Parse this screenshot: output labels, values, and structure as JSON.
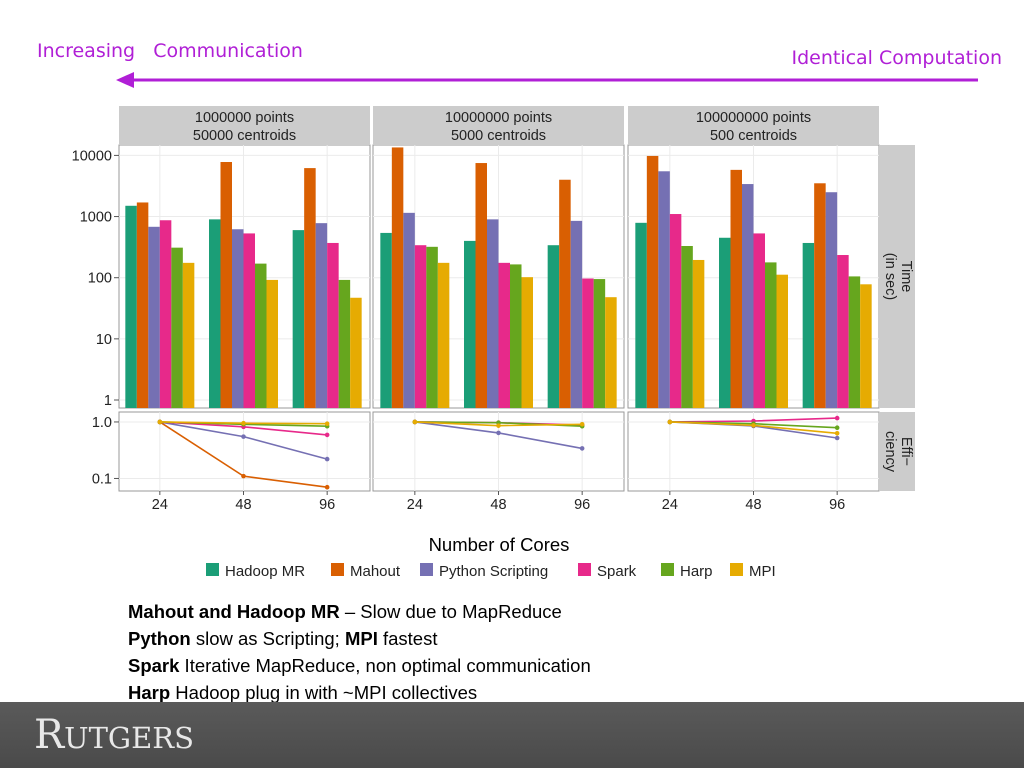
{
  "header": {
    "left_label": "Increasing   Communication",
    "right_label": "Identical Computation",
    "arrow_color": "#b01fd6"
  },
  "chart_data": {
    "type": "bar",
    "facets": [
      {
        "line1": "1000000 points",
        "line2": "50000 centroids"
      },
      {
        "line1": "10000000 points",
        "line2": "5000 centroids"
      },
      {
        "line1": "100000000 points",
        "line2": "500 centroids"
      }
    ],
    "categories": [
      "24",
      "48",
      "96"
    ],
    "xlabel": "Number of Cores",
    "strip_time": {
      "line1": "Time",
      "line2": "(in sec)"
    },
    "strip_eff": {
      "line1": "Effi−",
      "line2": "ciency"
    },
    "time_scale": "log10",
    "time_ylim": [
      1,
      20000
    ],
    "time_ticks": [
      "1",
      "10",
      "100",
      "1000",
      "10000"
    ],
    "eff_scale": "log10",
    "eff_ylim": [
      0.06,
      1.5
    ],
    "eff_ticks": [
      "0.1",
      "1.0"
    ],
    "series": [
      {
        "name": "Hadoop MR",
        "color": "#1b9e77",
        "time": [
          [
            1500,
            900,
            600
          ],
          [
            540,
            400,
            340
          ],
          [
            790,
            450,
            370
          ]
        ],
        "efficiency": [
          null,
          null,
          null
        ]
      },
      {
        "name": "Mahout",
        "color": "#d95f02",
        "time": [
          [
            1700,
            7800,
            6200
          ],
          [
            13500,
            7500,
            4000
          ],
          [
            9800,
            5800,
            3500
          ]
        ],
        "efficiency": [
          [
            1.0,
            0.11,
            0.07
          ],
          null,
          null
        ]
      },
      {
        "name": "Python Scripting",
        "color": "#7570b3",
        "time": [
          [
            680,
            620,
            780
          ],
          [
            1150,
            900,
            850
          ],
          [
            5500,
            3400,
            2500
          ]
        ],
        "efficiency": [
          [
            1.0,
            0.55,
            0.22
          ],
          [
            1.0,
            0.64,
            0.34
          ],
          [
            1.0,
            0.85,
            0.52
          ]
        ]
      },
      {
        "name": "Spark",
        "color": "#e7298a",
        "time": [
          [
            870,
            530,
            370
          ],
          [
            340,
            175,
            97
          ],
          [
            1100,
            530,
            235
          ]
        ],
        "efficiency": [
          [
            1.0,
            0.82,
            0.59
          ],
          [
            1.0,
            0.97,
            0.88
          ],
          [
            1.0,
            1.04,
            1.17
          ]
        ]
      },
      {
        "name": "Harp",
        "color": "#66a61e",
        "time": [
          [
            310,
            170,
            92
          ],
          [
            320,
            165,
            95
          ],
          [
            330,
            178,
            105
          ]
        ],
        "efficiency": [
          [
            1.0,
            0.91,
            0.84
          ],
          [
            1.0,
            0.97,
            0.84
          ],
          [
            1.0,
            0.93,
            0.79
          ]
        ]
      },
      {
        "name": "MPI",
        "color": "#e6ab02",
        "time": [
          [
            175,
            92,
            47
          ],
          [
            175,
            102,
            48
          ],
          [
            195,
            112,
            78
          ]
        ],
        "efficiency": [
          [
            1.0,
            0.95,
            0.93
          ],
          [
            1.0,
            0.86,
            0.91
          ],
          [
            1.0,
            0.87,
            0.63
          ]
        ]
      }
    ]
  },
  "notes": [
    {
      "bold": "Mahout and Hadoop MR",
      "text": " – Slow due to MapReduce"
    },
    {
      "bold": "Python",
      "text": " slow as Scripting; ",
      "bold2": "MPI",
      "text2": " fastest"
    },
    {
      "bold": "Spark",
      "text": " Iterative MapReduce, non optimal communication"
    },
    {
      "bold": "Harp",
      "text": " Hadoop plug in with ~MPI collectives"
    }
  ],
  "footer": {
    "logo_first": "R",
    "logo_rest": "UTGERS"
  }
}
